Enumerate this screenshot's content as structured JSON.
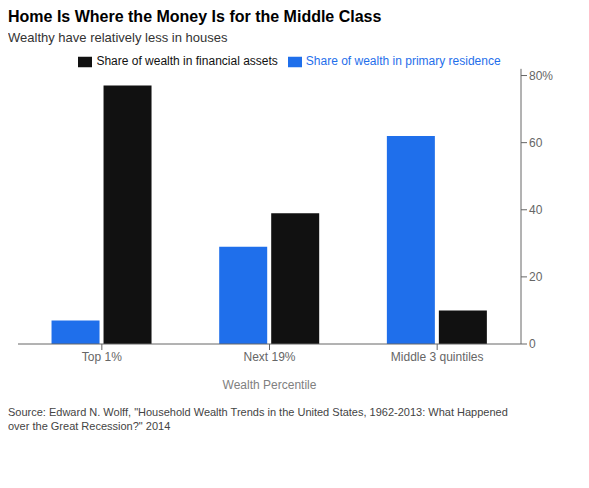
{
  "chart_data": {
    "type": "bar",
    "title": "Home Is Where the Money Is for the Middle Class",
    "subtitle": "Wealthy have relatively less in houses",
    "categories": [
      "Top 1%",
      "Next 19%",
      "Middle 3 quintiles"
    ],
    "series": [
      {
        "name": "Share of wealth in primary residence",
        "color": "#1F6FEB",
        "values": [
          7,
          29,
          62
        ]
      },
      {
        "name": "Share of wealth in financial assets",
        "color": "#111111",
        "values": [
          77,
          39,
          10
        ]
      }
    ],
    "xlabel": "Wealth Percentile",
    "ylim": [
      0,
      82
    ],
    "yticks": [
      0,
      20,
      40,
      60,
      {
        "value": 80,
        "label": "80%"
      }
    ],
    "grid": false,
    "legend": "top",
    "source": "Source: Edward N. Wolff, \"Household Wealth Trends in the United States, 1962-2013: What Happened\nover the Great Recession?\" 2014"
  }
}
